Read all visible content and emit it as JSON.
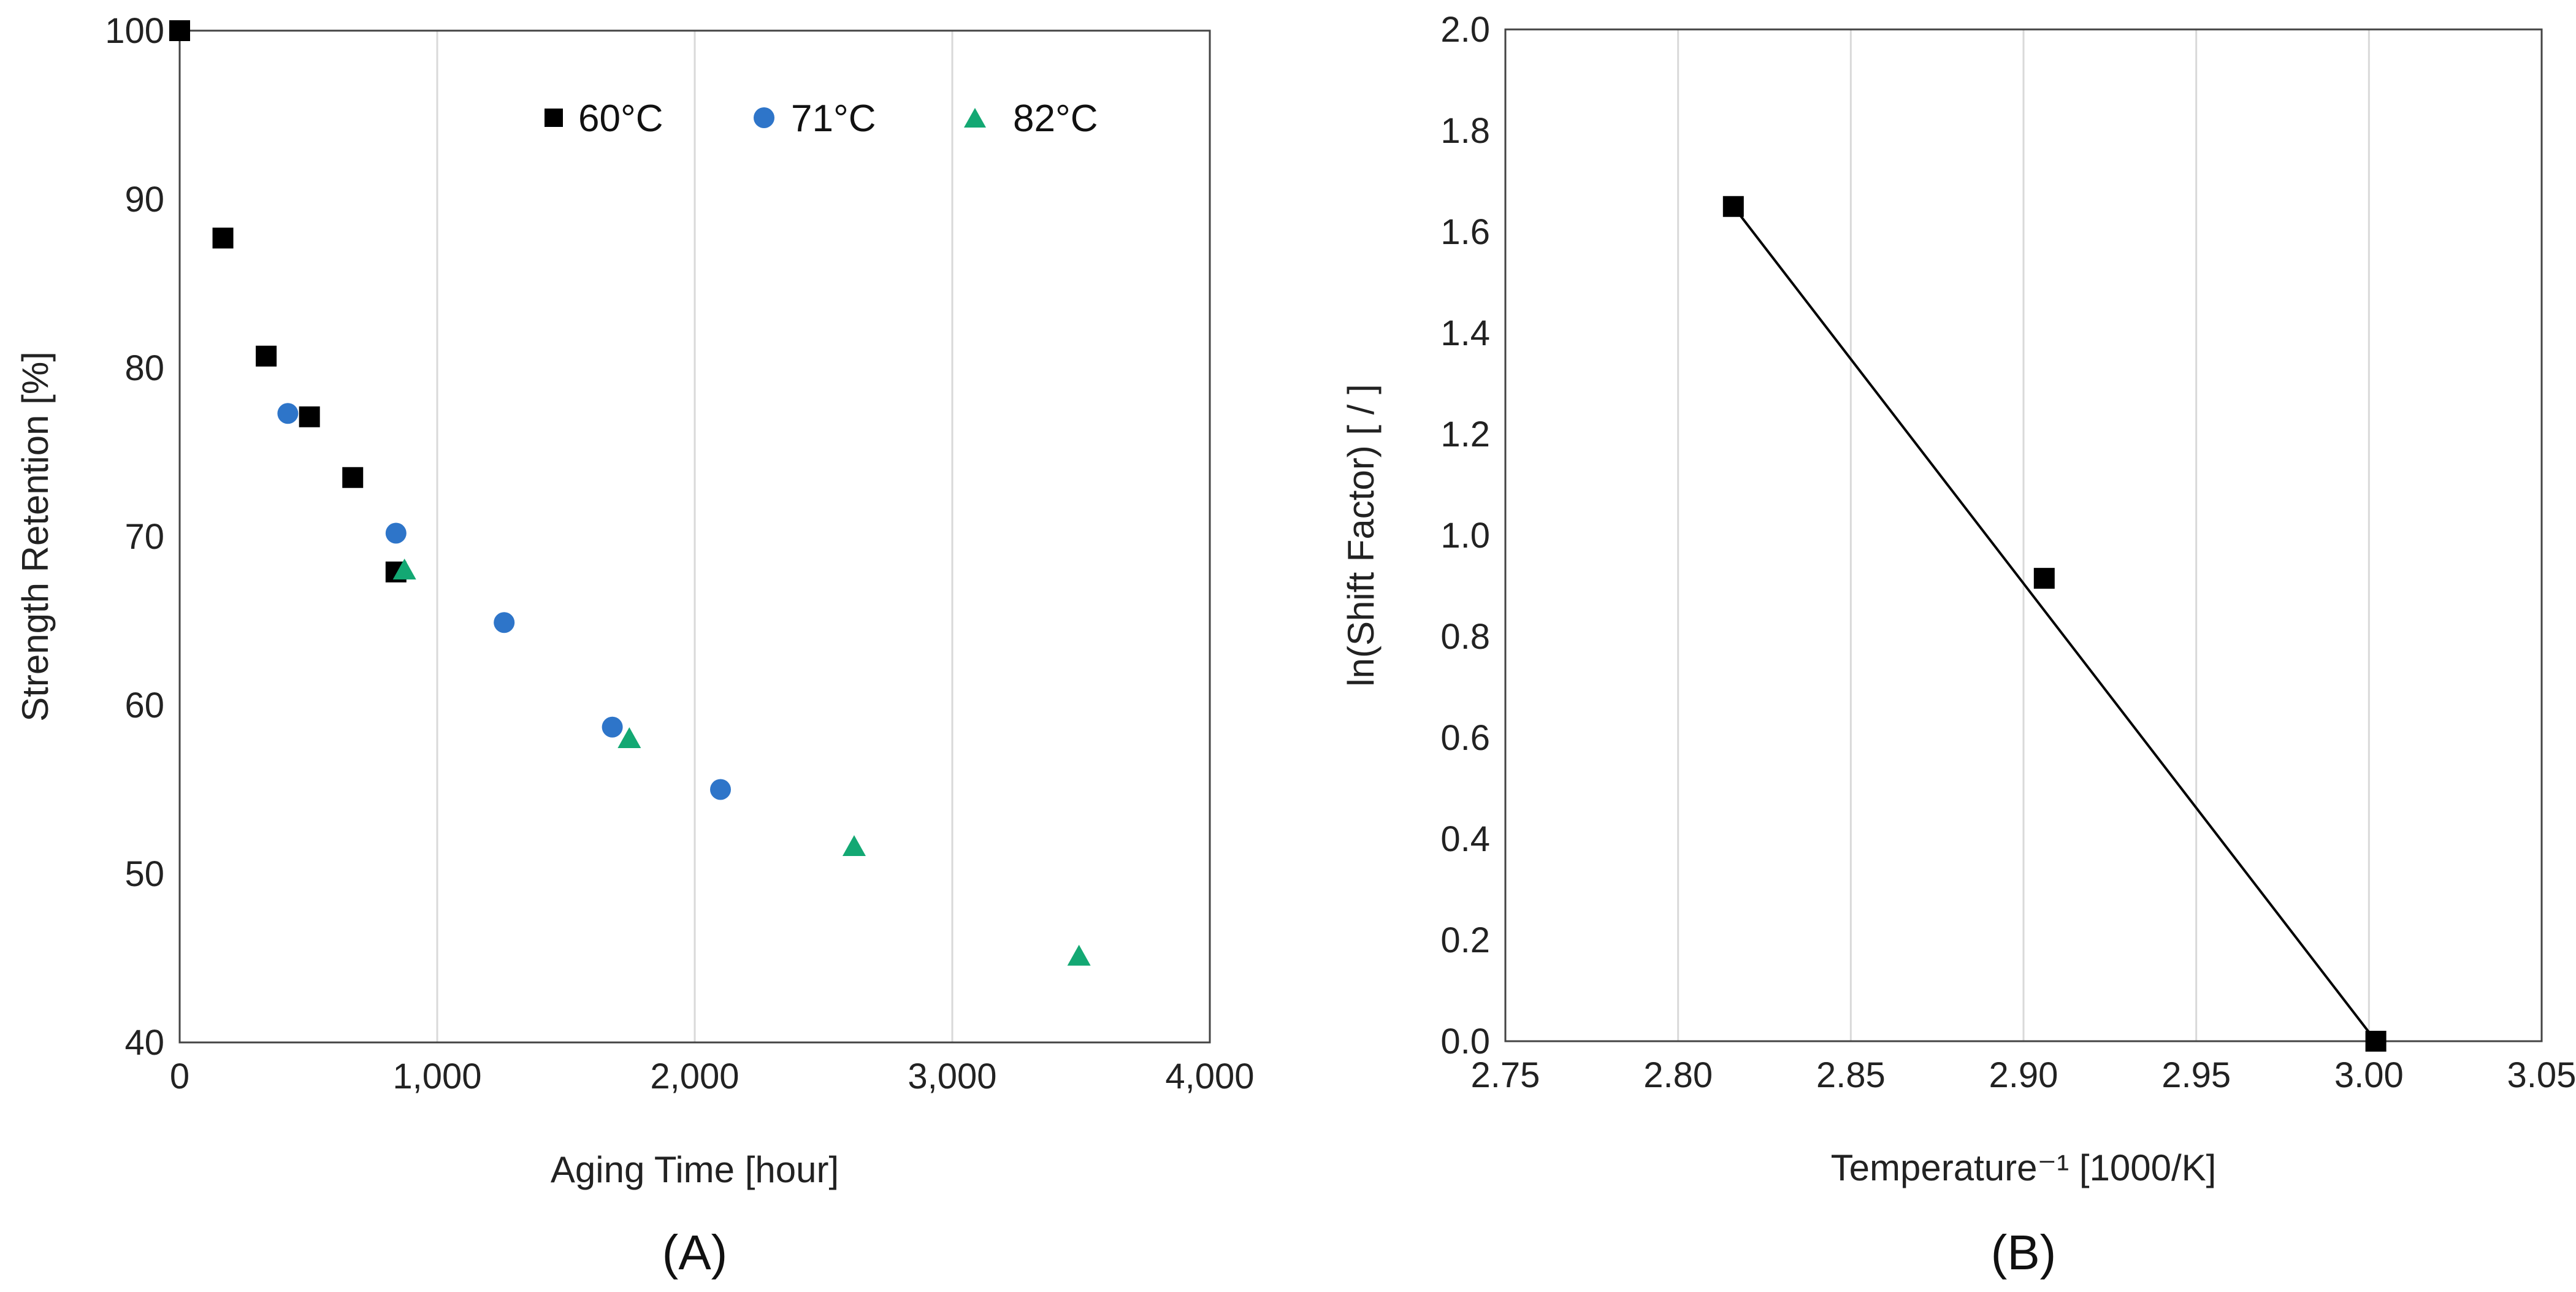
{
  "colors": {
    "s60": "#000000",
    "s71": "#2e75c9",
    "s82": "#13a873",
    "fit": "#000000"
  },
  "chart_data": [
    {
      "panel": "(A)",
      "type": "scatter",
      "title": "",
      "xlabel": "Aging Time [hour]",
      "ylabel": "Strength Retention [%]",
      "xlim": [
        0,
        4000
      ],
      "ylim": [
        40,
        100
      ],
      "xticks": [
        0,
        1000,
        2000,
        3000,
        4000
      ],
      "xtick_labels": [
        "0",
        "1,000",
        "2,000",
        "3,000",
        "4,000"
      ],
      "yticks": [
        40,
        50,
        60,
        70,
        80,
        90,
        100
      ],
      "ytick_labels": [
        "40",
        "50",
        "60",
        "70",
        "80",
        "90",
        "100"
      ],
      "grid": "vertical",
      "legend_position": "top-right",
      "series": [
        {
          "name": "60°C",
          "marker": "square",
          "color_key": "s60",
          "x": [
            0,
            168,
            336,
            504,
            672,
            840
          ],
          "y": [
            100,
            87.7,
            80.7,
            77.1,
            73.5,
            67.9
          ]
        },
        {
          "name": "71°C",
          "marker": "circle",
          "color_key": "s71",
          "x": [
            420,
            840,
            1260,
            1680,
            2100
          ],
          "y": [
            77.3,
            70.2,
            64.9,
            58.7,
            55.0
          ]
        },
        {
          "name": "82°C",
          "marker": "triangle",
          "color_key": "s82",
          "x": [
            873,
            1746,
            2619,
            3492
          ],
          "y": [
            68.0,
            58.0,
            51.6,
            45.1
          ]
        }
      ]
    },
    {
      "panel": "(B)",
      "type": "scatter",
      "title": "",
      "xlabel": "Temperature⁻¹ [1000/K]",
      "ylabel": "ln(Shift Factor) [ / ]",
      "xlim": [
        2.75,
        3.05
      ],
      "ylim": [
        0.0,
        2.0
      ],
      "xticks": [
        2.75,
        2.8,
        2.85,
        2.9,
        2.95,
        3.0,
        3.05
      ],
      "xtick_labels": [
        "2.75",
        "2.80",
        "2.85",
        "2.90",
        "2.95",
        "3.00",
        "3.05"
      ],
      "yticks": [
        0.0,
        0.2,
        0.4,
        0.6,
        0.8,
        1.0,
        1.2,
        1.4,
        1.6,
        1.8,
        2.0
      ],
      "ytick_labels": [
        "0.0",
        "0.2",
        "0.4",
        "0.6",
        "0.8",
        "1.0",
        "1.2",
        "1.4",
        "1.6",
        "1.8",
        "2.0"
      ],
      "grid": "vertical",
      "series": [
        {
          "name": "Shift factor",
          "marker": "square",
          "color_key": "s60",
          "x": [
            2.816,
            2.906,
            3.002
          ],
          "y": [
            1.65,
            0.915,
            0.0
          ]
        }
      ],
      "fit_line": {
        "x": [
          2.816,
          3.002
        ],
        "y": [
          1.65,
          0.0
        ]
      }
    }
  ]
}
